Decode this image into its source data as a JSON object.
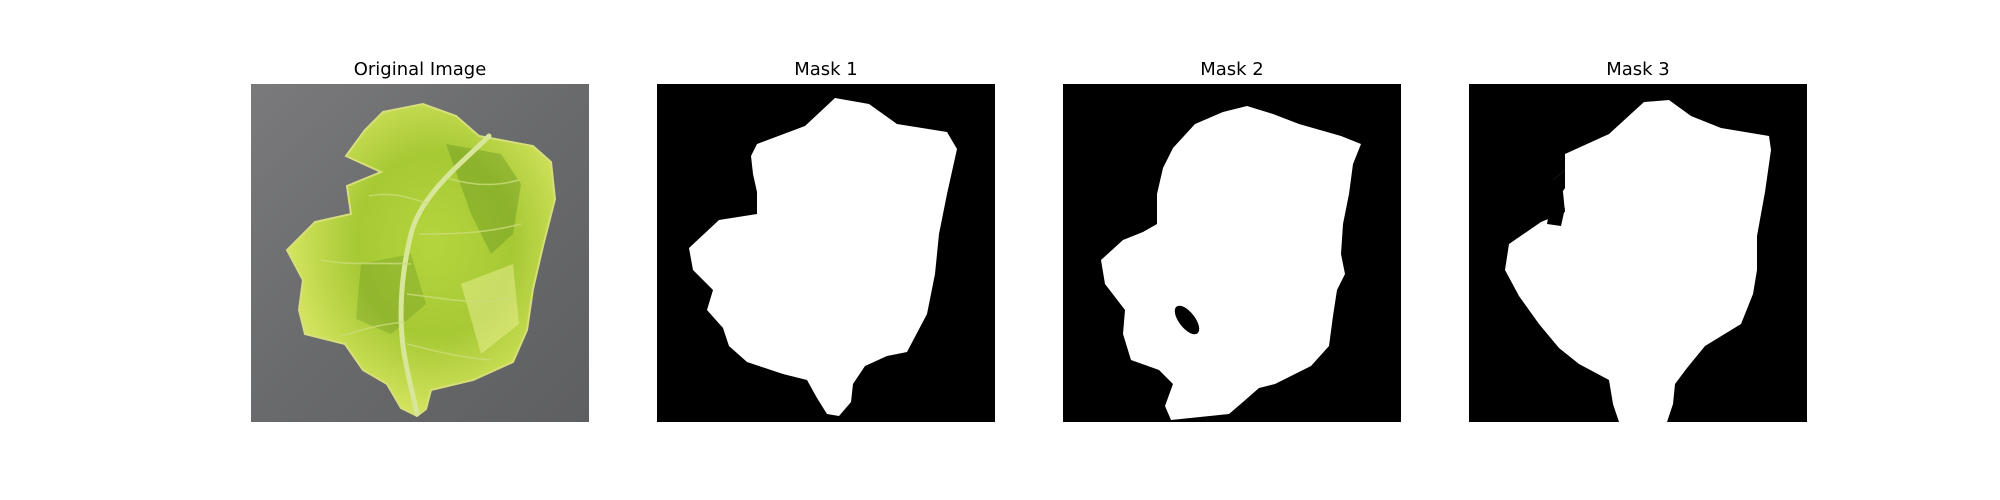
{
  "panels": [
    {
      "title": "Original Image",
      "kind": "photo",
      "subject": "leaf-photo"
    },
    {
      "title": "Mask 1",
      "kind": "mask"
    },
    {
      "title": "Mask 2",
      "kind": "mask"
    },
    {
      "title": "Mask 3",
      "kind": "mask"
    }
  ],
  "colors": {
    "background": "#ffffff",
    "mask_background": "#000000",
    "mask_foreground": "#ffffff",
    "leaf_light": "#c8e04a",
    "leaf_mid": "#9fc52f",
    "leaf_dark": "#5d8a1e",
    "surface": "#6e6e70"
  }
}
